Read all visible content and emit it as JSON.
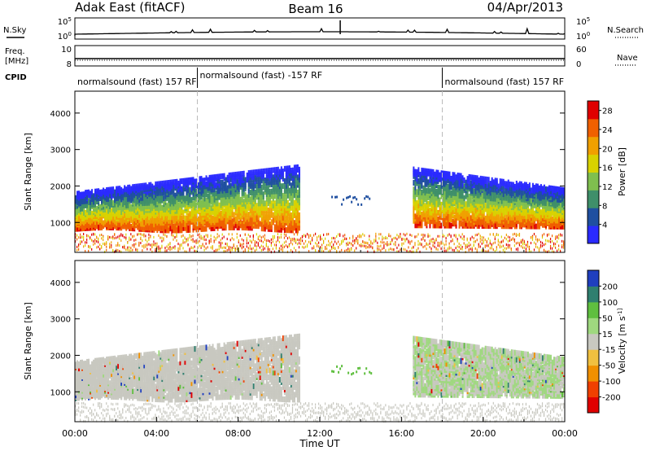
{
  "header": {
    "station": "Adak East (fitACF)",
    "beam": "Beam 16",
    "date": "04/Apr/2013"
  },
  "panel_labels": {
    "nsky": "N.Sky",
    "nsearch": "N.Search",
    "freq_line1": "Freq.",
    "freq_line2": "[MHz]",
    "nave": "Nave",
    "cpid": "CPID"
  },
  "noise_ticks": {
    "top": "10^5",
    "bottom": "10^0"
  },
  "freq_ticks": {
    "top": "10",
    "bottom": "8"
  },
  "nave_ticks": {
    "top": "60",
    "bottom": "0"
  },
  "cpid_segments": [
    {
      "label": "normalsound (fast) 157 RF",
      "start_hour": 0
    },
    {
      "label": "normalsound (fast) -157 RF",
      "start_hour": 6
    },
    {
      "label": "normalsound (fast) 157 RF",
      "start_hour": 18
    }
  ],
  "chart_data": [
    {
      "type": "heatmap",
      "parameter": "power",
      "ylabel": "Slant Range [km]",
      "xlabel": "Time UT",
      "x_ticks": [
        "00:00",
        "04:00",
        "08:00",
        "12:00",
        "16:00",
        "20:00",
        "00:00"
      ],
      "xlim_hours": [
        0,
        24
      ],
      "y_ticks": [
        1000,
        2000,
        3000,
        4000
      ],
      "ylim_km": [
        180,
        4600
      ],
      "colorbar_label": "Power [dB]",
      "colorbar_ticks": [
        4,
        8,
        12,
        16,
        20,
        24,
        28
      ],
      "colorbar_range": [
        0,
        30
      ],
      "colors": [
        "#2a2aff",
        "#1f4fa0",
        "#3f8f6a",
        "#7fbf4f",
        "#d8d200",
        "#f0a000",
        "#f06000",
        "#e00000"
      ]
    },
    {
      "type": "heatmap",
      "parameter": "velocity",
      "ylabel": "Slant Range [km]",
      "xlabel": "Time UT",
      "x_ticks": [
        "00:00",
        "04:00",
        "08:00",
        "12:00",
        "16:00",
        "20:00",
        "00:00"
      ],
      "xlim_hours": [
        0,
        24
      ],
      "y_ticks": [
        1000,
        2000,
        3000,
        4000
      ],
      "ylim_km": [
        180,
        4600
      ],
      "colorbar_label": "Velocity [m s^-1]",
      "colorbar_ticks": [
        200,
        100,
        50,
        15,
        -15,
        -50,
        -100,
        -200
      ],
      "colors": [
        "#1f3fbf",
        "#2f7f6f",
        "#5fbf3f",
        "#9fd87f",
        "#c8c8c0",
        "#f0c040",
        "#f09000",
        "#f04000",
        "#e00000"
      ]
    }
  ],
  "x_axis_title": "Time UT"
}
